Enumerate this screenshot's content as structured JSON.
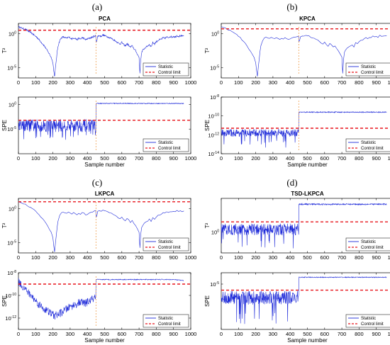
{
  "panel_labels": [
    "(a)",
    "(b)",
    "(c)",
    "(d)"
  ],
  "colors": {
    "statistic": "#1f2bd9",
    "control_limit": "#e8141b",
    "fault_marker": "#f0a050"
  },
  "chart_data": [
    {
      "type": "line",
      "panel": "(a)",
      "title": "PCA",
      "row": "top",
      "col": 0,
      "ylabel": "T²",
      "xlabel": "",
      "xlim": [
        0,
        1000
      ],
      "xticks": [
        0,
        100,
        200,
        300,
        400,
        500,
        600,
        700,
        800,
        900,
        1000
      ],
      "yscale": "log",
      "ylog_range": [
        -6.5,
        1.5
      ],
      "yticks": [
        {
          "exp": 0,
          "label": "10",
          "sup": "0"
        },
        {
          "exp": -5,
          "label": "10",
          "sup": "-5"
        }
      ],
      "fault_at": 450,
      "control_limit_log": 0.5,
      "series": [
        {
          "name": "Statistic",
          "x": [
            1,
            10,
            20,
            30,
            40,
            50,
            60,
            70,
            80,
            90,
            100,
            110,
            120,
            130,
            140,
            150,
            160,
            170,
            180,
            190,
            200,
            205,
            210,
            215,
            220,
            225,
            230,
            240,
            250,
            260,
            270,
            280,
            290,
            300,
            310,
            320,
            330,
            340,
            350,
            360,
            370,
            380,
            390,
            400,
            410,
            420,
            430,
            440,
            449,
            450,
            455,
            460,
            470,
            480,
            490,
            500,
            510,
            520,
            530,
            540,
            550,
            560,
            570,
            580,
            590,
            600,
            610,
            620,
            630,
            640,
            650,
            660,
            670,
            680,
            690,
            700,
            705,
            710,
            715,
            720,
            730,
            740,
            750,
            760,
            770,
            780,
            790,
            800,
            810,
            820,
            830,
            840,
            850,
            860,
            870,
            880,
            890,
            900,
            910,
            920,
            930,
            940,
            950,
            960
          ],
          "ylog": [
            1.0,
            0.9,
            0.8,
            0.7,
            0.6,
            0.5,
            0.3,
            0.2,
            0.0,
            -0.2,
            -0.4,
            -0.6,
            -0.9,
            -1.2,
            -1.5,
            -1.8,
            -2.2,
            -2.6,
            -3.0,
            -3.5,
            -4.2,
            -5.5,
            -6.3,
            -5.0,
            -3.8,
            -2.6,
            -1.8,
            -1.0,
            -0.6,
            -0.5,
            -0.6,
            -0.7,
            -0.5,
            -0.6,
            -0.8,
            -0.6,
            -0.7,
            -0.9,
            -0.7,
            -0.8,
            -0.6,
            -0.7,
            -0.9,
            -0.8,
            -0.7,
            -0.6,
            -0.5,
            -0.4,
            -0.3,
            -1.3,
            -1.0,
            -0.4,
            -0.3,
            -0.4,
            -0.2,
            -0.3,
            -0.4,
            -0.5,
            -0.6,
            -0.7,
            -0.9,
            -1.0,
            -1.2,
            -1.4,
            -1.5,
            -1.3,
            -1.6,
            -1.8,
            -1.5,
            -1.7,
            -2.0,
            -1.8,
            -2.2,
            -2.5,
            -3.0,
            -3.5,
            -5.8,
            -3.8,
            -2.8,
            -2.5,
            -2.2,
            -2.0,
            -1.8,
            -1.6,
            -1.9,
            -1.3,
            -1.5,
            -1.2,
            -1.0,
            -0.9,
            -0.8,
            -0.6,
            -0.7,
            -0.5,
            -0.6,
            -0.4,
            -0.5,
            -0.4,
            -0.5,
            -0.3,
            -0.4,
            -0.3,
            -0.4,
            -0.3
          ]
        },
        {
          "name": "Control limit",
          "style": "dashed"
        }
      ],
      "legend": {
        "position": "bottom-right",
        "entries": [
          "Statistic",
          "Control limit"
        ]
      }
    },
    {
      "type": "line",
      "panel": "(a)",
      "title": "",
      "row": "bottom",
      "col": 0,
      "ylabel": "SPE",
      "xlabel": "Sample number",
      "xlim": [
        0,
        1000
      ],
      "xticks": [
        0,
        100,
        200,
        300,
        400,
        500,
        600,
        700,
        800,
        900,
        1000
      ],
      "yscale": "log",
      "ylog_range": [
        -10,
        1.5
      ],
      "yticks": [
        {
          "exp": 0,
          "label": "10",
          "sup": "0"
        },
        {
          "exp": -5,
          "label": "10",
          "sup": "-5"
        }
      ],
      "fault_at": 450,
      "control_limit_log": -3.2,
      "series": [
        {
          "name": "Statistic",
          "pattern": "noise_then_high",
          "pre_base": -4.3,
          "pre_amp": 1.3,
          "pre_spike_to": -7.5,
          "post_level": 0.2,
          "post_amp": 0.08
        },
        {
          "name": "Control limit",
          "style": "dashed"
        }
      ],
      "legend": {
        "position": "bottom-right",
        "entries": [
          "Statistic",
          "Control limit"
        ]
      }
    },
    {
      "type": "line",
      "panel": "(b)",
      "title": "KPCA",
      "row": "top",
      "col": 1,
      "ylabel": "T²",
      "xlabel": "",
      "xlim": [
        0,
        1000
      ],
      "xticks": [
        0,
        100,
        200,
        300,
        400,
        500,
        600,
        700,
        800,
        900,
        1000
      ],
      "yscale": "log",
      "ylog_range": [
        -6.5,
        1.5
      ],
      "yticks": [
        {
          "exp": 0,
          "label": "10",
          "sup": "0"
        },
        {
          "exp": -5,
          "label": "10",
          "sup": "-5"
        }
      ],
      "fault_at": 450,
      "control_limit_log": 0.7,
      "series": [
        {
          "name": "Statistic",
          "copy_of": 0
        },
        {
          "name": "Control limit",
          "style": "dashed"
        }
      ],
      "legend": {
        "position": "bottom-right",
        "entries": [
          "Statistic",
          "Control limit"
        ]
      }
    },
    {
      "type": "line",
      "panel": "(b)",
      "title": "",
      "row": "bottom",
      "col": 1,
      "ylabel": "SPE",
      "xlabel": "Sample number",
      "xlim": [
        0,
        1000
      ],
      "xticks": [
        0,
        100,
        200,
        300,
        400,
        500,
        600,
        700,
        800,
        900,
        1000
      ],
      "yscale": "log",
      "ylog_range": [
        -14,
        -8
      ],
      "yticks": [
        {
          "exp": -8,
          "label": "10",
          "sup": "-8"
        },
        {
          "exp": -10,
          "label": "10",
          "sup": "-10"
        },
        {
          "exp": -12,
          "label": "10",
          "sup": "-12"
        },
        {
          "exp": -14,
          "label": "10",
          "sup": "-14"
        }
      ],
      "fault_at": 450,
      "control_limit_log": -11.3,
      "series": [
        {
          "name": "Statistic",
          "pattern": "noise_then_high",
          "pre_base": -11.8,
          "pre_amp": 0.4,
          "pre_spike_to": -13.4,
          "post_level": -9.6,
          "post_amp": 0.05
        },
        {
          "name": "Control limit",
          "style": "dashed"
        }
      ],
      "legend": {
        "position": "bottom-right",
        "entries": [
          "Statistic",
          "Control limit"
        ]
      }
    },
    {
      "type": "line",
      "panel": "(c)",
      "title": "LKPCA",
      "row": "top",
      "col": 0,
      "ylabel": "T²",
      "xlabel": "",
      "xlim": [
        0,
        1000
      ],
      "xticks": [
        0,
        100,
        200,
        300,
        400,
        500,
        600,
        700,
        800,
        900,
        1000
      ],
      "yscale": "log",
      "ylog_range": [
        -6.5,
        1.5
      ],
      "yticks": [
        {
          "exp": 0,
          "label": "10",
          "sup": "0"
        },
        {
          "exp": -5,
          "label": "10",
          "sup": "-5"
        }
      ],
      "fault_at": 450,
      "control_limit_log": 1.0,
      "series": [
        {
          "name": "Statistic",
          "copy_of": 0
        },
        {
          "name": "Control limit",
          "style": "dashed"
        }
      ],
      "legend": {
        "position": "bottom-right",
        "entries": [
          "Statistic",
          "Control limit"
        ]
      }
    },
    {
      "type": "line",
      "panel": "(c)",
      "title": "",
      "row": "bottom",
      "col": 0,
      "ylabel": "SPE",
      "xlabel": "Sample number",
      "xlim": [
        0,
        1000
      ],
      "xticks": [
        0,
        100,
        200,
        300,
        400,
        500,
        600,
        700,
        800,
        900,
        1000
      ],
      "yscale": "log",
      "ylog_range": [
        -13,
        -8
      ],
      "yticks": [
        {
          "exp": -8,
          "label": "10",
          "sup": "-8"
        },
        {
          "exp": -10,
          "label": "10",
          "sup": "-10"
        },
        {
          "exp": -12,
          "label": "10",
          "sup": "-12"
        }
      ],
      "fault_at": 450,
      "control_limit_log": -9.0,
      "series": [
        {
          "name": "Statistic",
          "pattern": "bowl_then_high",
          "x": [
            1,
            30,
            60,
            90,
            120,
            150,
            180,
            210,
            240,
            270,
            300,
            330,
            360,
            390,
            420,
            449,
            450,
            460,
            500,
            600,
            700,
            800,
            900,
            960
          ],
          "ylog": [
            -8.8,
            -9.3,
            -9.8,
            -10.3,
            -10.8,
            -11.2,
            -11.5,
            -11.8,
            -11.6,
            -11.3,
            -11.0,
            -10.8,
            -10.6,
            -10.7,
            -10.4,
            -10.2,
            -8.6,
            -8.6,
            -8.6,
            -8.6,
            -8.6,
            -8.6,
            -8.6,
            -8.7
          ],
          "amp": 0.35
        },
        {
          "name": "Control limit",
          "style": "dashed"
        }
      ],
      "legend": {
        "position": "bottom-right",
        "entries": [
          "Statistic",
          "Control limit"
        ]
      }
    },
    {
      "type": "line",
      "panel": "(d)",
      "title": "TSD-LKPCA",
      "row": "top",
      "col": 1,
      "ylabel": "T²",
      "xlabel": "",
      "xlim": [
        0,
        1000
      ],
      "xticks": [
        0,
        100,
        200,
        300,
        400,
        500,
        600,
        700,
        800,
        900,
        1000
      ],
      "yscale": "log",
      "ylog_range": [
        -2.5,
        4
      ],
      "yticks": [
        {
          "exp": 0,
          "label": "10",
          "sup": "0"
        }
      ],
      "fault_at": 450,
      "control_limit_log": 1.2,
      "series": [
        {
          "name": "Statistic",
          "pattern": "noise_then_high",
          "pre_base": 0.3,
          "pre_amp": 0.7,
          "pre_spike_to": -2.0,
          "post_level": 3.3,
          "post_amp": 0.08
        },
        {
          "name": "Control limit",
          "style": "dashed"
        }
      ],
      "legend": {
        "position": "bottom-right",
        "entries": [
          "Statistic",
          "Control limit"
        ]
      }
    },
    {
      "type": "line",
      "panel": "(d)",
      "title": "",
      "row": "bottom",
      "col": 1,
      "ylabel": "SPE",
      "xlabel": "Sample number",
      "xlim": [
        0,
        1000
      ],
      "xticks": [
        0,
        100,
        200,
        300,
        400,
        500,
        600,
        700,
        800,
        900,
        1000
      ],
      "yscale": "log",
      "ylog_range": [
        -11,
        -3.5
      ],
      "yticks": [
        {
          "exp": -5,
          "label": "10",
          "sup": "-5"
        }
      ],
      "fault_at": 450,
      "control_limit_log": -5.8,
      "series": [
        {
          "name": "Statistic",
          "pattern": "noise_then_high",
          "pre_base": -6.8,
          "pre_amp": 0.9,
          "pre_spike_to": -10.3,
          "post_level": -4.1,
          "post_amp": 0.05
        },
        {
          "name": "Control limit",
          "style": "dashed"
        }
      ],
      "legend": {
        "position": "bottom-right",
        "entries": [
          "Statistic",
          "Control limit"
        ]
      }
    }
  ]
}
